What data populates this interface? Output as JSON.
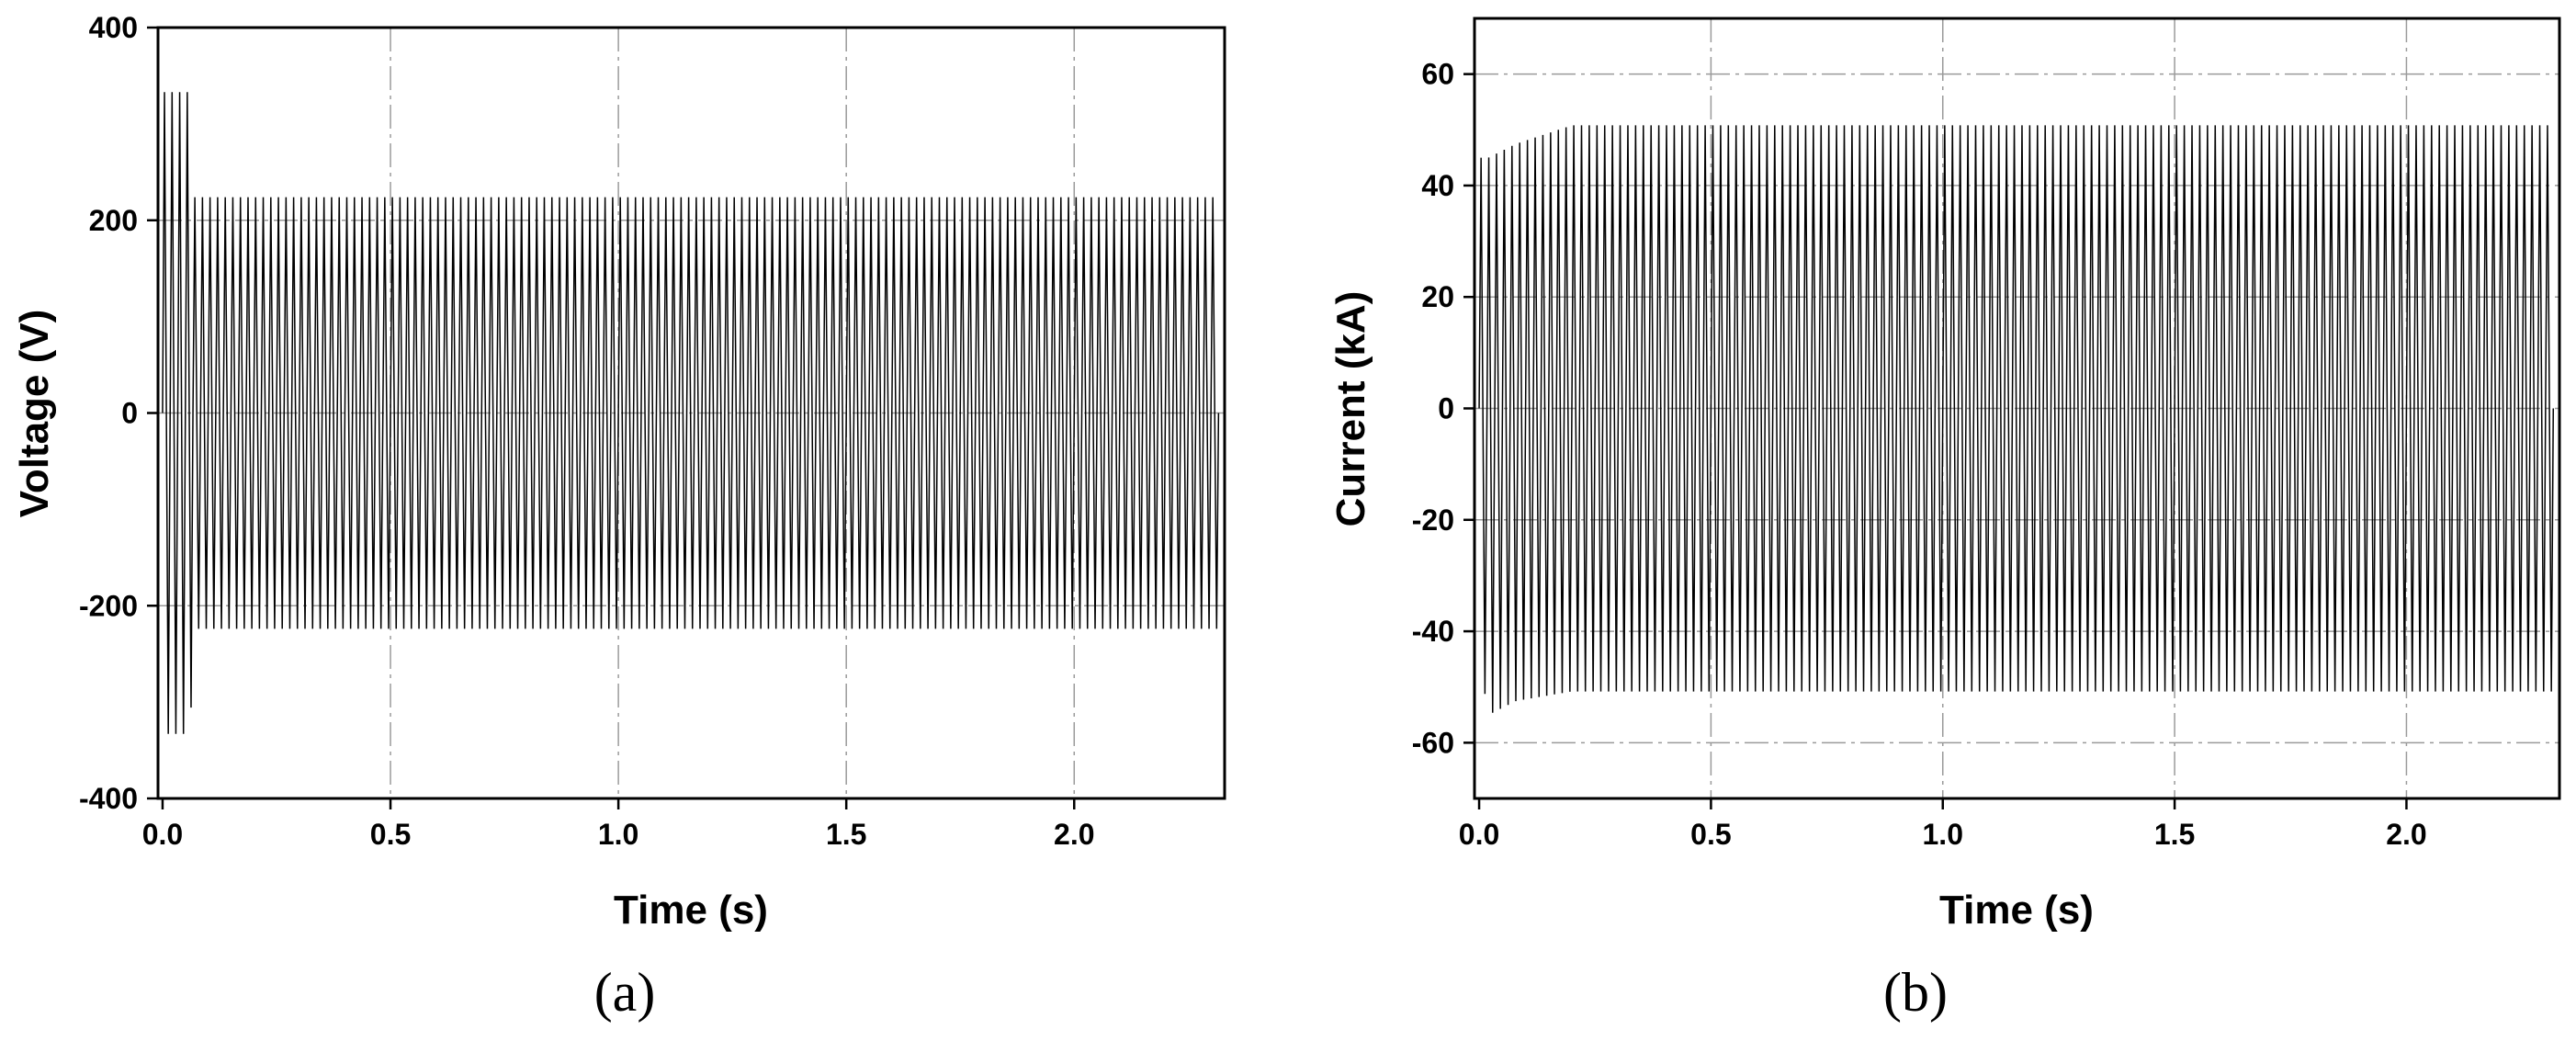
{
  "chart_data": [
    {
      "type": "line",
      "panel_label": "(a)",
      "xlabel": "Time (s)",
      "ylabel": "Voltage (V)",
      "xlim": [
        -0.01,
        2.33
      ],
      "ylim": [
        -400,
        400
      ],
      "xticks": [
        0.0,
        0.5,
        1.0,
        1.5,
        2.0
      ],
      "xtick_labels": [
        "0.0",
        "0.5",
        "1.0",
        "1.5",
        "2.0"
      ],
      "yticks": [
        -400,
        -200,
        0,
        200,
        400
      ],
      "ytick_labels": [
        "-400",
        "-200",
        "0",
        "200",
        "400"
      ],
      "grid": true,
      "series": [
        {
          "signal": "sinusoid",
          "frequency_hz": 60,
          "t_start": 0.0,
          "t_end": 2.33,
          "envelope_t": [
            0.0,
            0.06,
            0.07,
            2.33
          ],
          "envelope_amplitude": [
            333,
            333,
            224,
            224
          ],
          "color": "#000000"
        }
      ]
    },
    {
      "type": "line",
      "panel_label": "(b)",
      "xlabel": "Time (s)",
      "ylabel": "Current (kA)",
      "xlim": [
        -0.01,
        2.33
      ],
      "ylim": [
        -70,
        70
      ],
      "xticks": [
        0.0,
        0.5,
        1.0,
        1.5,
        2.0
      ],
      "xtick_labels": [
        "0.0",
        "0.5",
        "1.0",
        "1.5",
        "2.0"
      ],
      "yticks": [
        -60,
        -40,
        -20,
        0,
        20,
        40,
        60
      ],
      "ytick_labels": [
        "-60",
        "-40",
        "-20",
        "0",
        "20",
        "40",
        "60"
      ],
      "grid": true,
      "series": [
        {
          "signal": "sinusoid",
          "frequency_hz": 60,
          "t_start": 0.0,
          "t_end": 2.33,
          "offset_t": [
            0.0,
            0.02,
            0.08,
            0.2,
            2.33
          ],
          "offset_value": [
            0.0,
            -5.0,
            -2.5,
            0.0,
            0.0
          ],
          "envelope_t": [
            0.0,
            0.02,
            0.08,
            0.2,
            2.33
          ],
          "envelope_amplitude": [
            45,
            50,
            50,
            50.8,
            50.8
          ],
          "color": "#000000"
        }
      ]
    }
  ]
}
